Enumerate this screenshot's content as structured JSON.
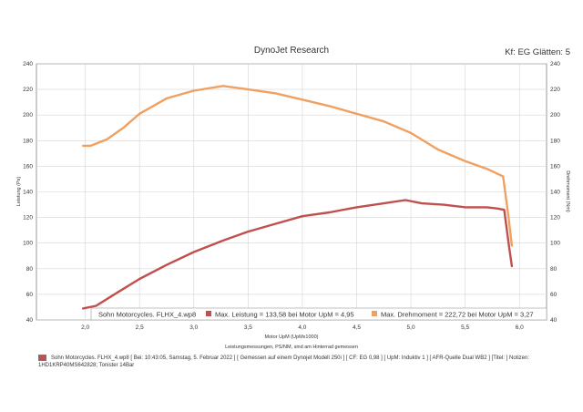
{
  "header": {
    "title": "DynoJet Research",
    "kf_label": "Kf: EG Glätten: 5"
  },
  "legend": {
    "file": "Sohn Motorcycles. FLHX_4.wp8",
    "power_text": "Max. Leistung = 133,58 bei Motor UpM = 4,95",
    "torque_text": "Max. Drehmoment = 222,72 bei Motor UpM = 3,27"
  },
  "subtitle": "Leistungsmessungen, PS/NM, sind am Hinterrad gemessen",
  "footer": {
    "line1": "Sohn Motorcycles. FLHX_4.wp8 [ Bei: 10:43:05, Samstag, 5. Februar 2022 ] [ Gemessen auf einem Dynojet Modell 250i ] [ CF: EG 0,98 ] [ UpM: Induktiv 1 ] [ AFR-Quelle Dual WB2 ] [Titel: ] Notizen:",
    "line2": "1HD1KRP40MS642828; Tonister 14Bar"
  },
  "colors": {
    "power": "#c0504d",
    "torque": "#f0a060",
    "grid": "#d4d4d4"
  },
  "chart_data": {
    "type": "line",
    "xlabel": "Motor UpM (UpMx1000)",
    "ylabel": "Leistung (Ps)",
    "ylabel_right": "Drehmoment (Nm)",
    "xlim": [
      1.55,
      6.25
    ],
    "ylim": [
      40,
      240
    ],
    "xticks": [
      "2,0",
      "2,5",
      "3,0",
      "3,5",
      "4,0",
      "4,5",
      "5,0",
      "5,5",
      "6,0"
    ],
    "yticks": [
      "40",
      "60",
      "80",
      "100",
      "120",
      "140",
      "160",
      "180",
      "200",
      "220",
      "240"
    ],
    "grid": true,
    "legend_position": "bottom",
    "series": [
      {
        "name": "Max. Leistung",
        "x": [
          1.98,
          2.1,
          2.25,
          2.5,
          2.75,
          3.0,
          3.27,
          3.5,
          3.75,
          4.0,
          4.25,
          4.5,
          4.75,
          4.95,
          5.1,
          5.3,
          5.5,
          5.7,
          5.8,
          5.86,
          5.9,
          5.93
        ],
        "values": [
          49,
          51,
          59,
          72,
          83,
          93,
          102,
          109,
          115,
          121,
          124,
          128,
          131,
          133.6,
          131,
          130,
          128,
          128,
          127,
          126,
          100,
          82
        ]
      },
      {
        "name": "Max. Drehmoment",
        "x": [
          1.98,
          2.05,
          2.2,
          2.35,
          2.5,
          2.75,
          3.0,
          3.27,
          3.5,
          3.75,
          4.0,
          4.25,
          4.5,
          4.75,
          5.0,
          5.25,
          5.5,
          5.7,
          5.85,
          5.9,
          5.93
        ],
        "values": [
          176,
          176,
          181,
          190,
          201,
          213,
          219,
          222.7,
          220,
          217,
          212,
          207,
          201,
          195,
          186,
          173,
          164,
          158,
          152,
          120,
          98
        ]
      }
    ]
  }
}
